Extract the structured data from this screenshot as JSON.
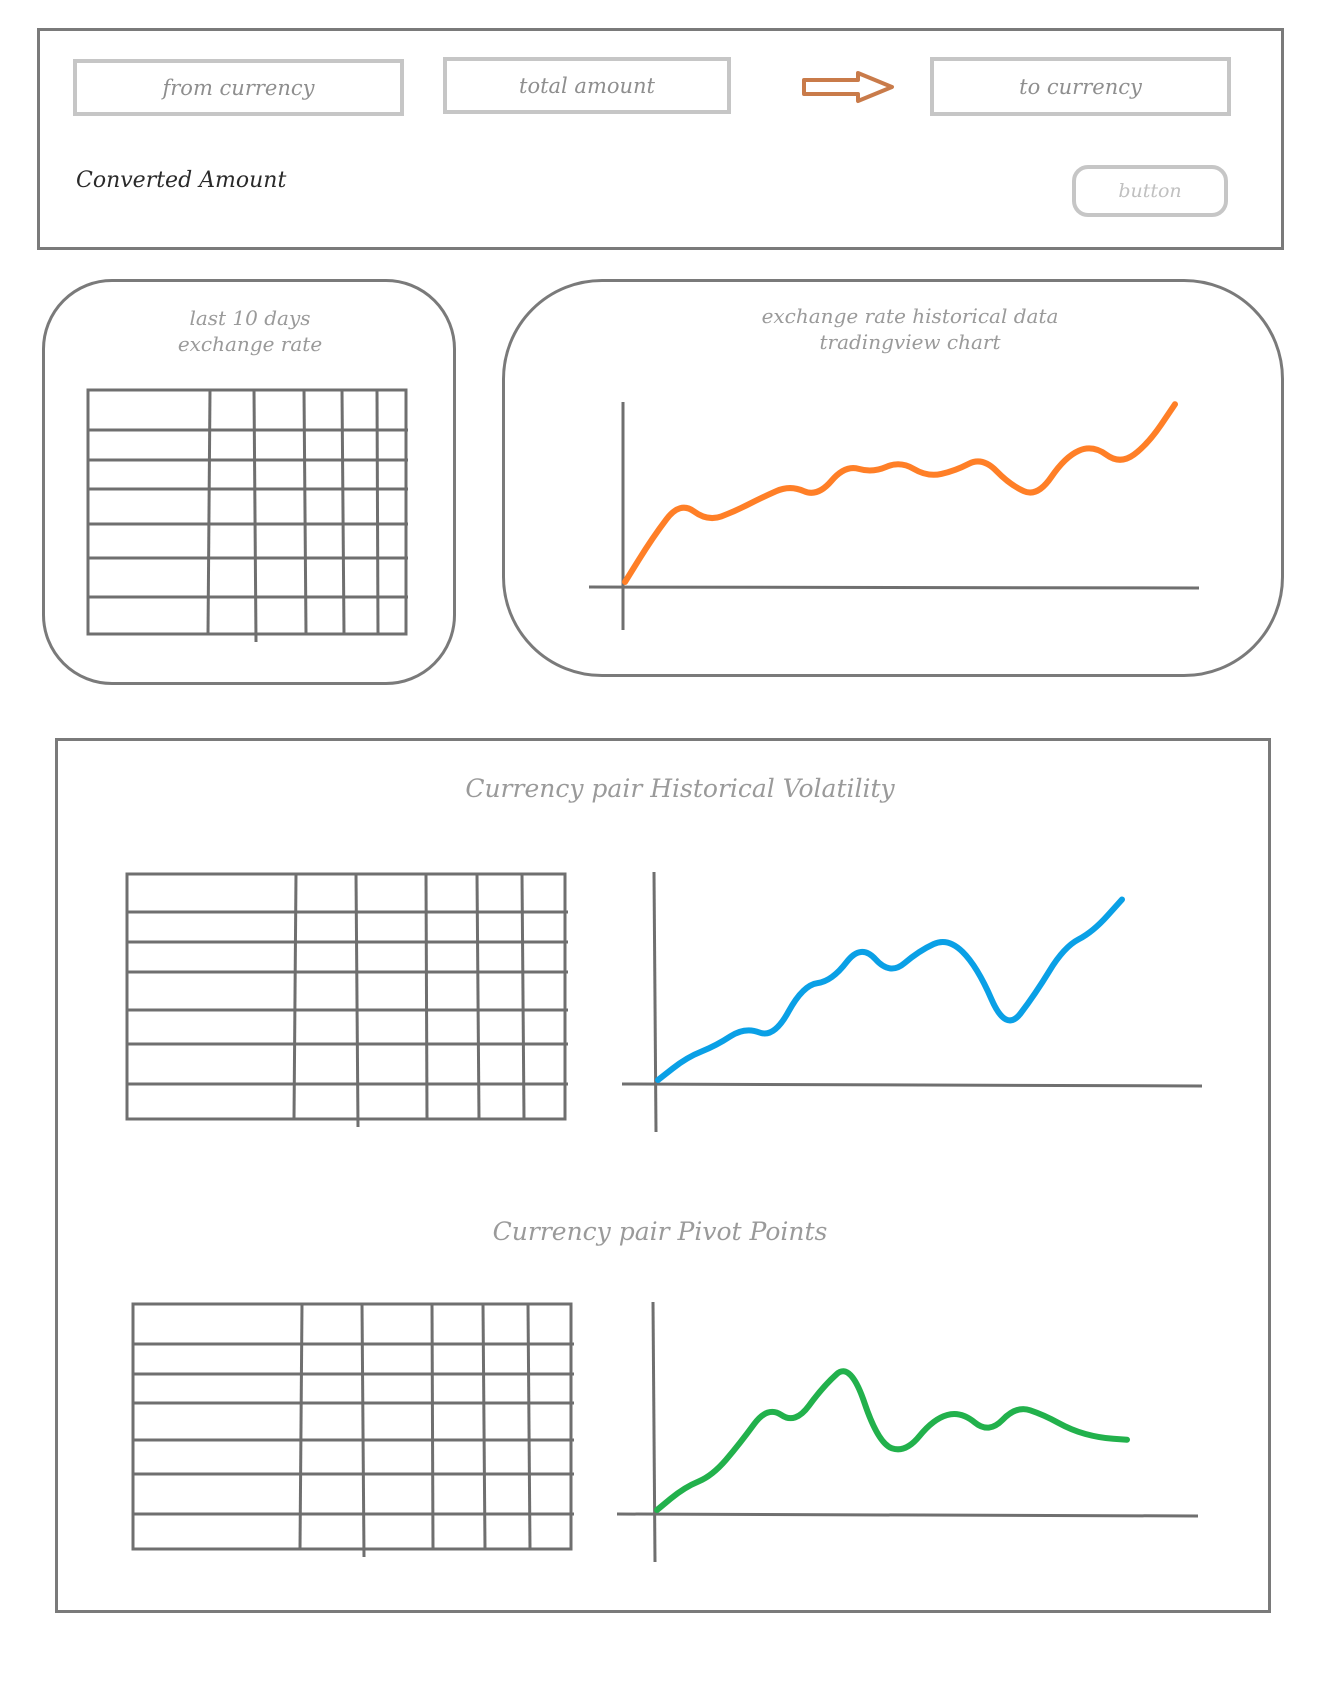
{
  "converter": {
    "from_currency": "from currency",
    "total_amount": "total amount",
    "to_currency": "to currency",
    "converted_amount": "Converted Amount",
    "button_label": "button",
    "arrow_color": "#c97b4a"
  },
  "last_days": {
    "title_line1": "last 10 days",
    "title_line2": "exchange rate"
  },
  "history_chart": {
    "title_line1": "exchange rate historical data",
    "title_line2": "tradingview chart",
    "line_color": "#ff7f27"
  },
  "analysis": {
    "volatility_title": "Currency pair Historical Volatility",
    "pivot_title": "Currency pair Pivot Points",
    "volatility_color": "#0aa0e6",
    "pivot_color": "#22b14c"
  },
  "chart_data": [
    {
      "type": "line",
      "title": "",
      "series": [
        {
          "values": [
            0,
            22,
            40,
            30,
            35,
            42,
            48,
            42,
            58,
            54,
            60,
            52,
            55,
            62,
            48,
            42,
            62,
            68,
            58,
            68,
            88
          ]
        }
      ]
    },
    {
      "type": "line",
      "title": "",
      "series": [
        {
          "values": [
            0,
            12,
            18,
            28,
            22,
            50,
            52,
            72,
            55,
            68,
            75,
            60,
            25,
            45,
            70,
            78,
            95
          ]
        }
      ]
    },
    {
      "type": "line",
      "title": "",
      "series": [
        {
          "values": [
            0,
            12,
            18,
            35,
            55,
            45,
            65,
            78,
            35,
            30,
            48,
            52,
            40,
            55,
            50,
            42,
            38,
            37
          ]
        }
      ]
    }
  ]
}
